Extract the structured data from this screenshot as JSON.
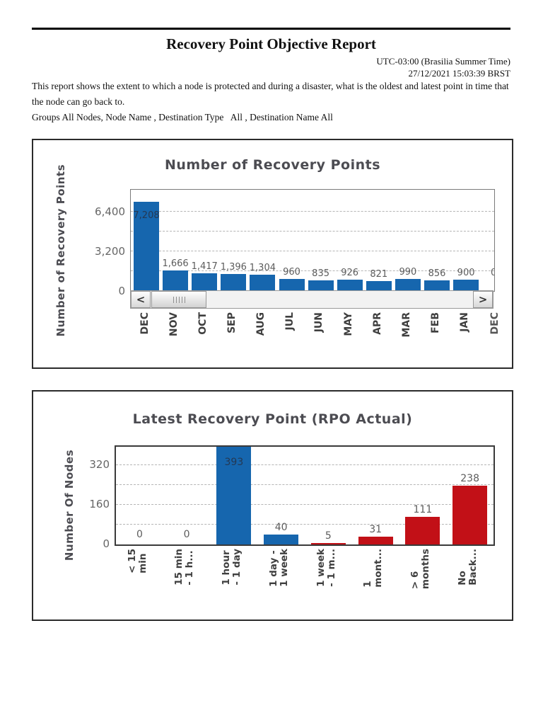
{
  "header": {
    "title": "Recovery Point Objective Report",
    "timezone": "UTC-03:00 (Brasilia Summer Time)",
    "timestamp": "27/12/2021 15:03:39 BRST",
    "description": "This report shows the extent to which a node is protected and during a disaster, what is the oldest and latest point in time that the node can go back to.",
    "filters": "Groups All Nodes, Node Name , Destination Type   All , Destination Name All"
  },
  "colors": {
    "bar_blue": "#1666ae",
    "bar_red": "#c21017",
    "gridline": "#b5b5b5",
    "chart_text": "#4c4c52",
    "tick_text": "#666666",
    "value_text": "#5c5c5c"
  },
  "chart_data": [
    {
      "type": "bar",
      "title": "Number of Recovery Points",
      "ylabel": "Number of Recovery Points",
      "categories": [
        "DEC",
        "NOV",
        "OCT",
        "SEP",
        "AUG",
        "JUL",
        "JUN",
        "MAY",
        "APR",
        "MAR",
        "FEB",
        "JAN"
      ],
      "values": [
        7208,
        1666,
        1417,
        1396,
        1304,
        960,
        835,
        926,
        821,
        990,
        856,
        900
      ],
      "value_labels": [
        "7,208",
        "1,666",
        "1,417",
        "1,396",
        "1,304",
        "960",
        "835",
        "926",
        "821",
        "990",
        "856",
        "900"
      ],
      "bar_colors": [
        "blue",
        "blue",
        "blue",
        "blue",
        "blue",
        "blue",
        "blue",
        "blue",
        "blue",
        "blue",
        "blue",
        "blue"
      ],
      "yticks": [
        0,
        3200,
        6400
      ],
      "ytick_labels": [
        "0",
        "3,200",
        "6,400"
      ],
      "ylim": [
        0,
        8171
      ],
      "grid": "dashed-horizontal",
      "legend_position": "none",
      "truncated_next_category": "DEC",
      "truncated_next_value_label": "0",
      "scrollbar": {
        "left_glyph": "<",
        "right_glyph": ">"
      }
    },
    {
      "type": "bar",
      "title": "Latest Recovery Point (RPO Actual)",
      "ylabel": "Number Of Nodes",
      "categories": [
        [
          "< 15",
          "min"
        ],
        [
          "15 min",
          "- 1 h..."
        ],
        [
          "1 hour",
          "- 1 day"
        ],
        [
          "1 day -",
          "1 week"
        ],
        [
          "1 week",
          "- 1 m..."
        ],
        [
          "1",
          "mont..."
        ],
        [
          "> 6",
          "months"
        ],
        [
          "No",
          "Back..."
        ]
      ],
      "values": [
        0,
        0,
        393,
        40,
        5,
        31,
        111,
        238
      ],
      "value_labels": [
        "0",
        "0",
        "393",
        "40",
        "5",
        "31",
        "111",
        "238"
      ],
      "bar_colors": [
        "blue",
        "blue",
        "blue",
        "blue",
        "red",
        "red",
        "red",
        "red"
      ],
      "yticks": [
        0,
        160,
        320
      ],
      "ytick_labels": [
        "0",
        "160",
        "320"
      ],
      "ylim": [
        0,
        395
      ],
      "grid": "dashed-horizontal",
      "legend_position": "none"
    }
  ]
}
